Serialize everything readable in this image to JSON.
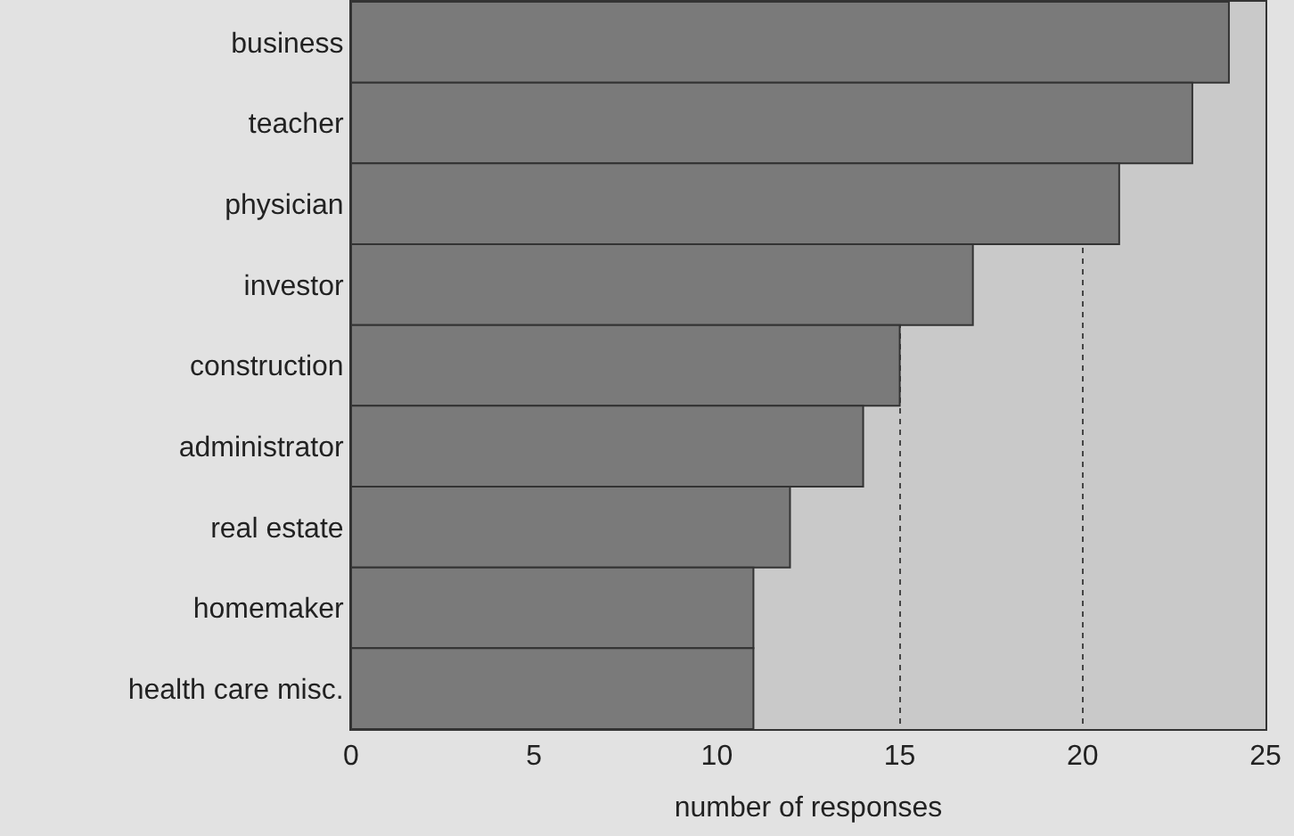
{
  "chart_data": {
    "type": "bar",
    "orientation": "horizontal",
    "xlabel": "number of responses",
    "categories": [
      "business",
      "teacher",
      "physician",
      "investor",
      "construction",
      "administrator",
      "real estate",
      "homemaker",
      "health care misc."
    ],
    "values": [
      24,
      23,
      21,
      17,
      15,
      14,
      12,
      11,
      11
    ],
    "color": "#7a7a7a",
    "xlim": [
      0,
      25
    ],
    "xticks": [
      0,
      5,
      10,
      15,
      20,
      25
    ],
    "grid": "x",
    "line_style": "dotted"
  }
}
